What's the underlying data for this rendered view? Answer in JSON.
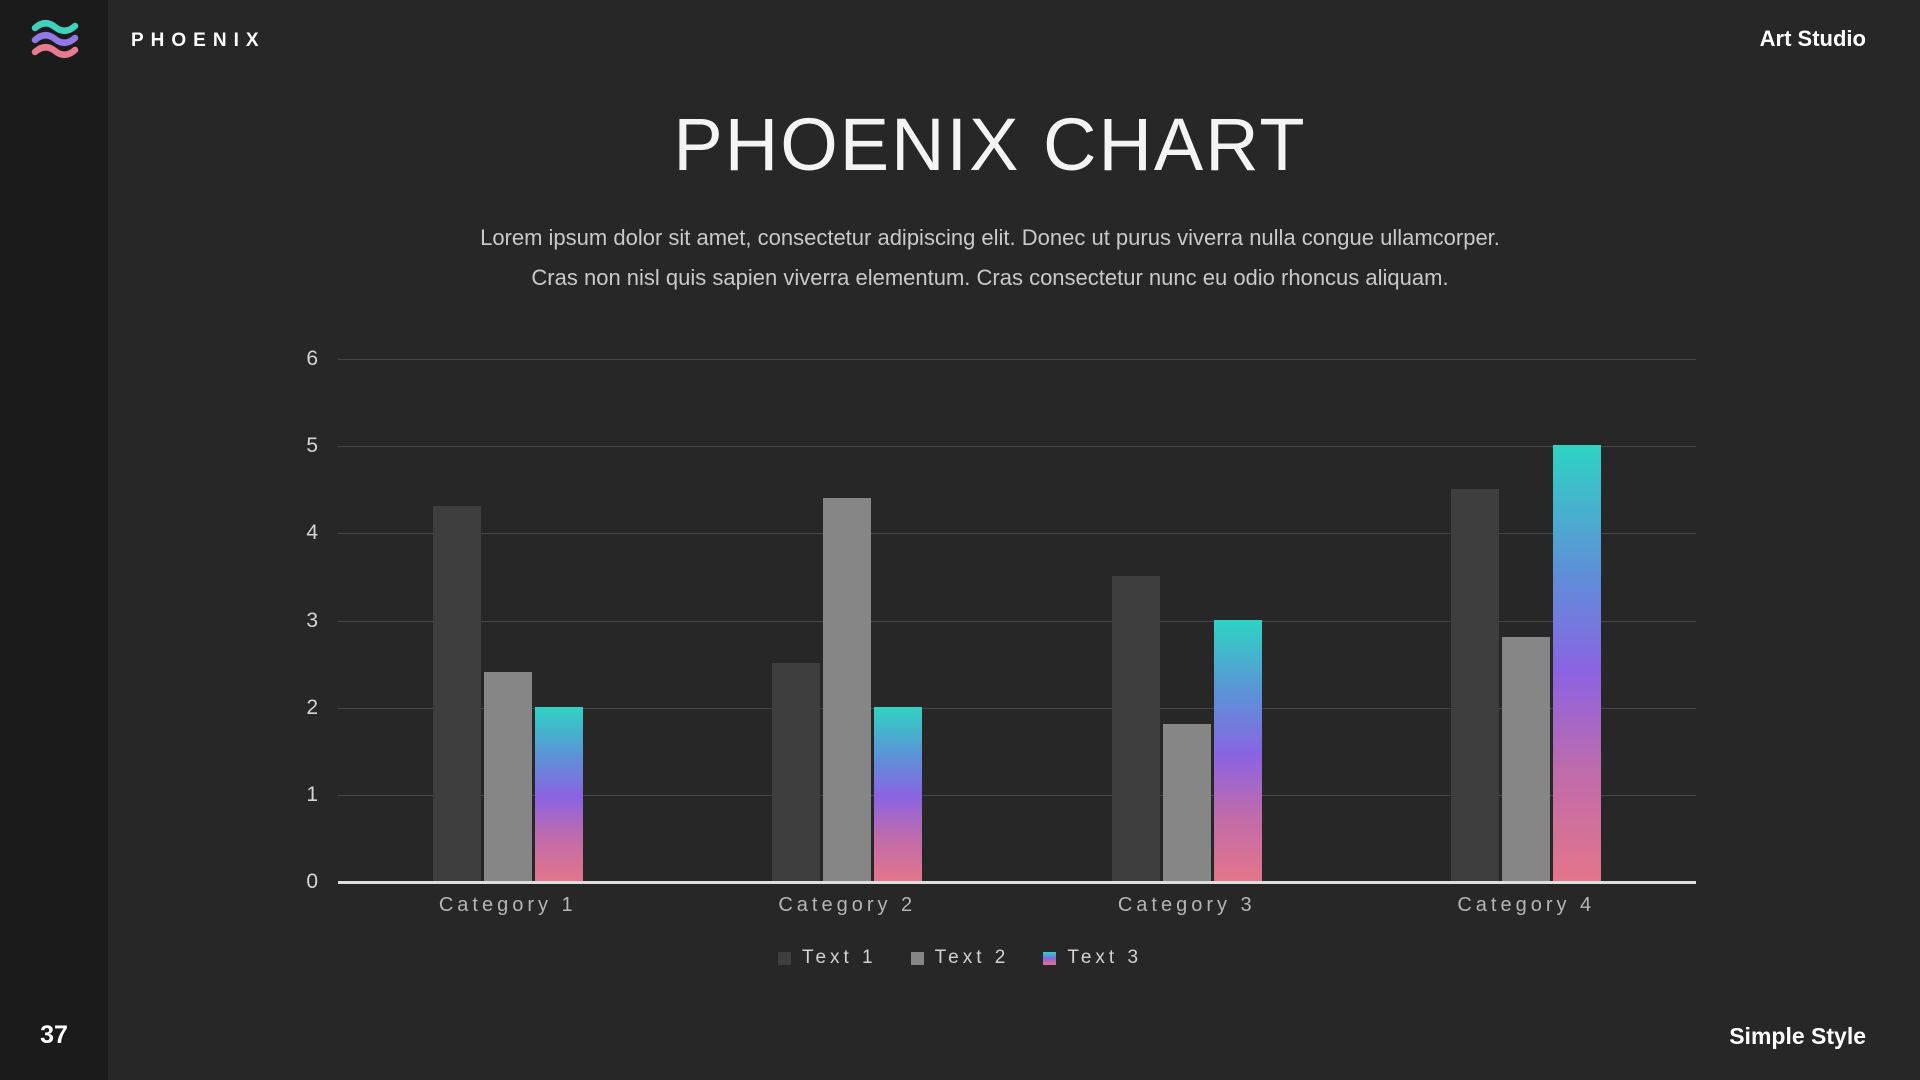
{
  "header": {
    "brand": "PHOENIX",
    "studio": "Art Studio"
  },
  "logo": {
    "icon": "three-waves",
    "wave_colors": [
      "#3fd3bd",
      "#9179e8",
      "#ea7a8f"
    ]
  },
  "title": "PHOENIX CHART",
  "subtitle": {
    "line1": "Lorem ipsum dolor sit amet, consectetur adipiscing elit. Donec ut purus viverra nulla congue ullamcorper.",
    "line2": "Cras non nisl quis sapien viverra elementum. Cras consectetur nunc eu odio rhoncus aliquam."
  },
  "footer": {
    "page_number": "37",
    "style_label": "Simple Style"
  },
  "colors": {
    "slide_bg": "#272727",
    "sidebar_bg": "#1b1b1b",
    "gridline": "#454545",
    "baseline": "#dedede",
    "series1": "#3e3e3e",
    "series2": "#868686",
    "series3_gradient_top": "#2ed3c3",
    "series3_gradient_bottom": "#e3758a"
  },
  "chart_data": {
    "type": "bar",
    "title": "PHOENIX CHART",
    "categories": [
      "Category 1",
      "Category 2",
      "Category 3",
      "Category 4"
    ],
    "series": [
      {
        "name": "Text 1",
        "color": "#3e3e3e",
        "values": [
          4.3,
          2.5,
          3.5,
          4.5
        ]
      },
      {
        "name": "Text 2",
        "color": "#868686",
        "values": [
          2.4,
          4.4,
          1.8,
          2.8
        ]
      },
      {
        "name": "Text 3",
        "gradient": [
          "#2ed3c3 0%",
          "#5f8ed8 30%",
          "#8b63e2 52%",
          "#c06bab 75%",
          "#e3758a 100%"
        ],
        "values": [
          2,
          2,
          3,
          5
        ]
      }
    ],
    "xlabel": "",
    "ylabel": "",
    "ylim": [
      0,
      6
    ],
    "yticks": [
      0,
      1,
      2,
      3,
      4,
      5,
      6
    ],
    "grid": true,
    "legend_position": "bottom"
  }
}
